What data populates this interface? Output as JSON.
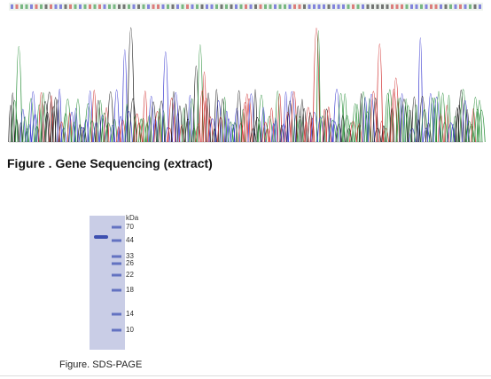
{
  "figure1": {
    "caption": "Figure . Gene Sequencing (extract)"
  },
  "figure2": {
    "caption": "Figure. SDS-PAGE",
    "unit": "kDa",
    "markers": [
      70,
      44,
      33,
      26,
      22,
      18,
      14,
      10
    ]
  }
}
